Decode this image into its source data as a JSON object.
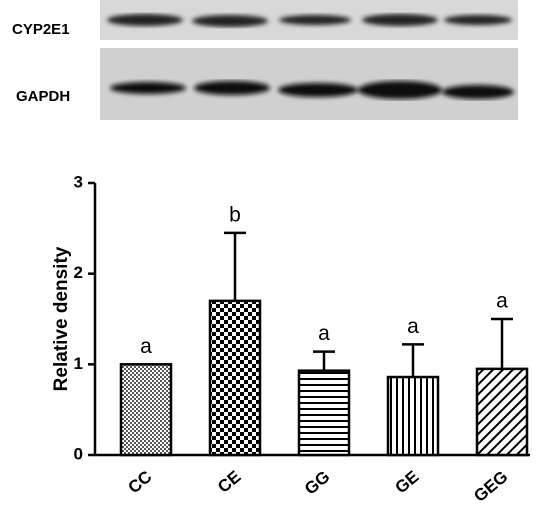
{
  "chart_data": {
    "type": "bar",
    "blot_labels": [
      "CYP2E1",
      "GAPDH"
    ],
    "ylabel": "Relative density",
    "categories": [
      "CC",
      "CE",
      "GG",
      "GE",
      "GEG"
    ],
    "values": [
      1.0,
      1.7,
      0.93,
      0.86,
      0.95
    ],
    "errors": [
      0,
      0.75,
      0.21,
      0.36,
      0.55
    ],
    "annotations": [
      "a",
      "b",
      "a",
      "a",
      "a"
    ],
    "ylim": [
      0,
      3
    ],
    "yticks": [
      0,
      1,
      2,
      3
    ]
  }
}
